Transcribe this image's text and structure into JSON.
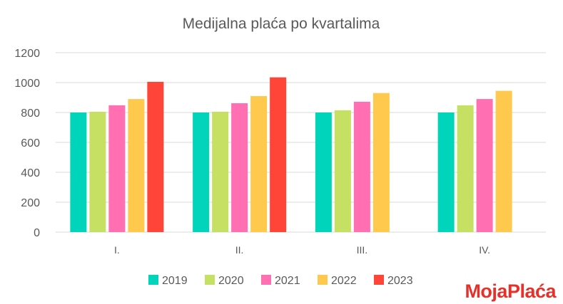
{
  "chart_data": {
    "type": "bar",
    "title": "Medijalna plaća po kvartalima",
    "xlabel": "",
    "ylabel": "",
    "categories": [
      "I.",
      "II.",
      "III.",
      "IV."
    ],
    "ylim": [
      0,
      1200
    ],
    "yticks": [
      0,
      200,
      400,
      600,
      800,
      1000,
      1200
    ],
    "grid": true,
    "legend_position": "bottom",
    "series": [
      {
        "name": "2019",
        "color": "#00d4bb",
        "values": [
          800,
          800,
          800,
          800
        ]
      },
      {
        "name": "2020",
        "color": "#c5e063",
        "values": [
          805,
          805,
          815,
          848
        ]
      },
      {
        "name": "2021",
        "color": "#ff6fb2",
        "values": [
          848,
          862,
          872,
          890
        ]
      },
      {
        "name": "2022",
        "color": "#ffc94d",
        "values": [
          890,
          910,
          930,
          945
        ]
      },
      {
        "name": "2023",
        "color": "#ff4538",
        "values": [
          1005,
          1035,
          null,
          null
        ]
      }
    ]
  },
  "branding": {
    "logo_text": "MojaPlaća",
    "logo_color": "#e8302a"
  }
}
